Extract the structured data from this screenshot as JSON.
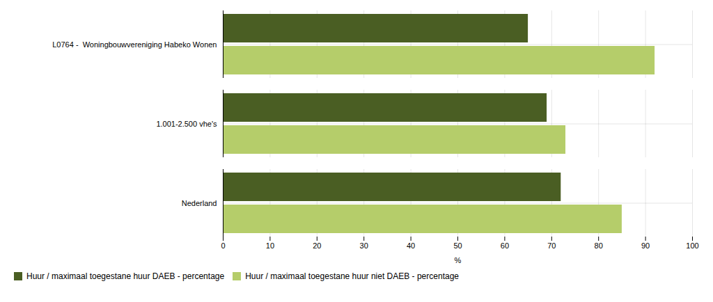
{
  "chart_data": {
    "type": "bar",
    "orientation": "horizontal",
    "categories": [
      "Nederland",
      "1.001-2.500 vhe's",
      "L0764 -  Woningbouwvereniging Habeko Wonen"
    ],
    "series": [
      {
        "name": "Huur / maximaal toegestane huur DAEB - percentage",
        "color": "#4a5e23",
        "values": [
          72,
          69,
          65
        ]
      },
      {
        "name": "Huur / maximaal toegestane huur niet DAEB - percentage",
        "color": "#b5cd6a",
        "values": [
          85,
          73,
          92
        ]
      }
    ],
    "xlabel": "%",
    "xlim": [
      0,
      100
    ],
    "xticks": [
      0,
      10,
      20,
      30,
      40,
      50,
      60,
      70,
      80,
      90,
      100
    ],
    "grid": true,
    "legend": "bottom"
  }
}
